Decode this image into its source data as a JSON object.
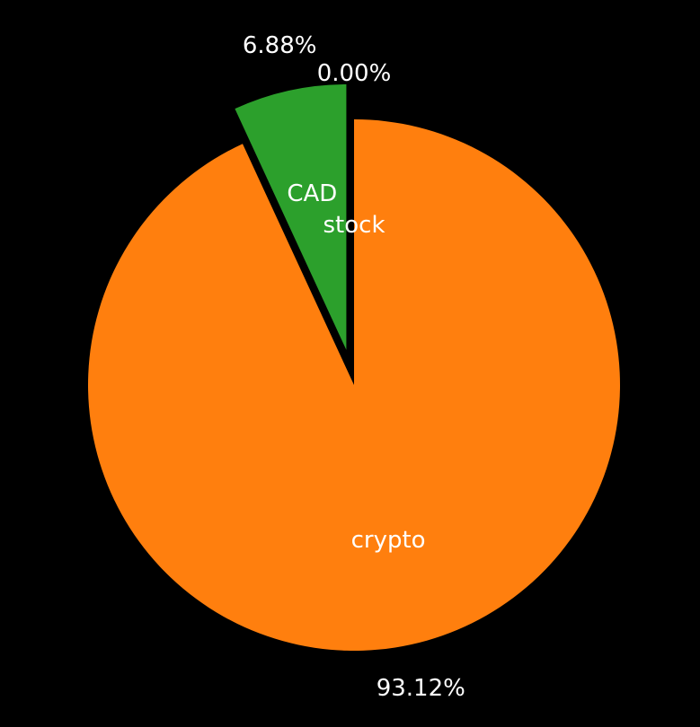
{
  "chart_data": {
    "type": "pie",
    "background": "#000000",
    "text_color": "#ffffff",
    "slices": [
      {
        "name": "stock",
        "value": 0.0,
        "percent_label": "0.00%",
        "color": "#1f77b4",
        "exploded": false
      },
      {
        "name": "crypto",
        "value": 93.12,
        "percent_label": "93.12%",
        "color": "#ff7f0e",
        "exploded": false
      },
      {
        "name": "CAD",
        "value": 6.88,
        "percent_label": "6.88%",
        "color": "#2ca02c",
        "exploded": true
      }
    ],
    "start_angle_deg": 90,
    "direction": "clockwise"
  }
}
